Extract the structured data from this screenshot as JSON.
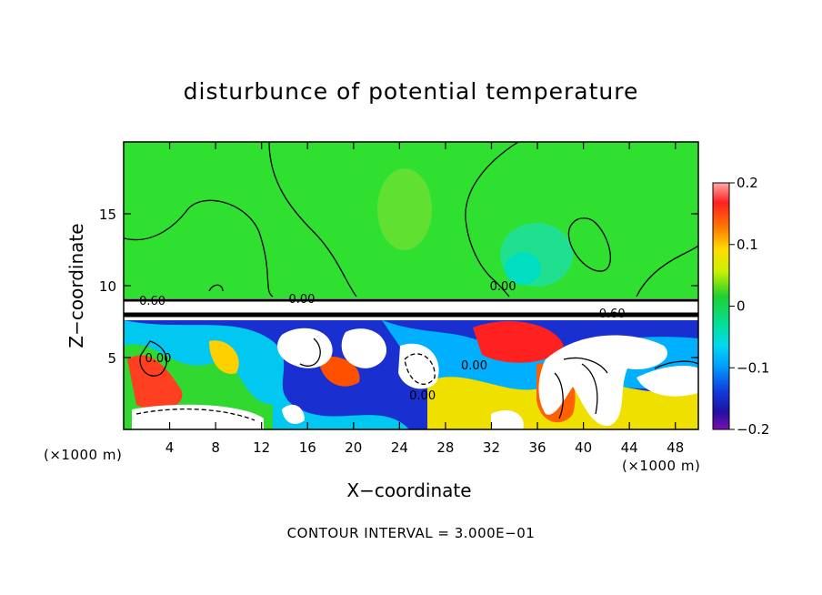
{
  "chart_data": {
    "type": "heatmap",
    "title": "disturbunce of potential temperature",
    "xlabel": "X−coordinate",
    "ylabel": "Z−coordinate",
    "x_unit": "(×1000 m)",
    "y_unit": "(×1000 m)",
    "xlim": [
      0,
      50
    ],
    "ylim": [
      0,
      20
    ],
    "x_ticks": [
      4,
      8,
      12,
      16,
      20,
      24,
      28,
      32,
      36,
      40,
      44,
      48
    ],
    "y_ticks": [
      5,
      10,
      15
    ],
    "colorbar": {
      "range": [
        -0.2,
        0.2
      ],
      "tick_labels": [
        "0.2",
        "0.1",
        "0",
        "−0.1",
        "−0.2"
      ],
      "tick_values": [
        0.2,
        0.1,
        0,
        -0.1,
        -0.2
      ]
    },
    "contour_interval": "CONTOUR INTERVAL = 3.000E−01",
    "contour_labels": [
      {
        "text": "0.60",
        "x": 2.5,
        "y": 9.0
      },
      {
        "text": "0.00",
        "x": 15.5,
        "y": 9.1
      },
      {
        "text": "0.00",
        "x": 33,
        "y": 10.0
      },
      {
        "text": "0.60",
        "x": 42.5,
        "y": 8.1
      },
      {
        "text": "0.00",
        "x": 3,
        "y": 5.0
      },
      {
        "text": "0.00",
        "x": 30.5,
        "y": 4.5
      },
      {
        "text": "0.00",
        "x": 26,
        "y": 2.4
      }
    ],
    "regions": [
      {
        "z_range": [
          9.3,
          20
        ],
        "description": "upper layer near 0 (green), cyan patch near x=34–38"
      },
      {
        "z_range": [
          8.0,
          9.3
        ],
        "description": "strong inversion band, values outside colour range (white)"
      },
      {
        "z_range": [
          0,
          8.0
        ],
        "description": "turbulent lower layer spanning −0.2 to 0.2 with saturated regions"
      }
    ]
  },
  "colors": {
    "upper": "#30e030",
    "high": "#ff3030",
    "low": "#1010c0"
  }
}
